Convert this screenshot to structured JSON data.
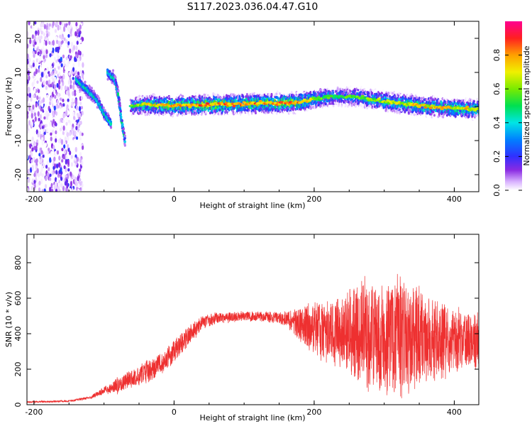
{
  "title": "S117.2023.036.04.47.G10",
  "colors": {
    "snr_line": "#ee3030"
  },
  "chart_data": [
    {
      "type": "heatmap",
      "xlabel": "Height of straight line (km)",
      "ylabel": "Frequency (Hz)",
      "xlim": [
        -210,
        435
      ],
      "ylim": [
        -25,
        25
      ],
      "xticks": [
        -200,
        0,
        200,
        400
      ],
      "yticks": [
        -20,
        -10,
        0,
        10,
        20
      ],
      "colorbar": {
        "label": "Normalized spectral amplitude",
        "range": [
          0,
          1
        ],
        "ticks": [
          "0.0",
          "0.2",
          "0.4",
          "0.6",
          "0.8"
        ],
        "colormap": "rainbow-white-purple-blue-cyan-green-yellow-red-magenta"
      },
      "ridge": {
        "x": [
          -60,
          -40,
          0,
          50,
          100,
          150,
          180,
          200,
          230,
          260,
          300,
          350,
          400,
          435
        ],
        "y": [
          0,
          0.5,
          0.3,
          0.5,
          0.8,
          1.0,
          1.2,
          2.2,
          3.0,
          2.8,
          1.5,
          0.2,
          -0.5,
          -0.8
        ],
        "amplitude": [
          0.6,
          0.75,
          0.85,
          0.9,
          0.85,
          0.9,
          0.9,
          0.7,
          0.55,
          0.6,
          0.7,
          0.8,
          0.8,
          0.75
        ]
      },
      "branches": [
        {
          "x": [
            -140,
            -125,
            -110,
            -100,
            -90
          ],
          "y": [
            8,
            5,
            2,
            -2,
            -5
          ]
        },
        {
          "x": [
            -95,
            -85,
            -80,
            -75,
            -70
          ],
          "y": [
            10,
            8,
            4,
            -4,
            -10
          ]
        }
      ],
      "noise_region": {
        "x": [
          -210,
          -130
        ],
        "y": [
          -25,
          25
        ]
      }
    },
    {
      "type": "line",
      "xlabel": "Height of straight line (km)",
      "ylabel": "SNR (10 * v/v)",
      "xlim": [
        -210,
        435
      ],
      "ylim": [
        0,
        960
      ],
      "xticks": [
        -200,
        0,
        200,
        400
      ],
      "yticks": [
        0,
        200,
        400,
        600,
        800
      ],
      "envelope": {
        "x": [
          -210,
          -150,
          -120,
          -100,
          -80,
          -60,
          -40,
          -20,
          0,
          20,
          40,
          60,
          100,
          150,
          170,
          190,
          210,
          250,
          270,
          300,
          320,
          350,
          380,
          410,
          435
        ],
        "mean": [
          15,
          20,
          40,
          80,
          110,
          150,
          180,
          230,
          300,
          390,
          460,
          490,
          500,
          490,
          470,
          440,
          420,
          400,
          390,
          380,
          380,
          370,
          360,
          360,
          360
        ],
        "amp": [
          5,
          5,
          8,
          20,
          40,
          50,
          60,
          60,
          60,
          50,
          40,
          30,
          25,
          30,
          60,
          120,
          150,
          220,
          280,
          300,
          320,
          260,
          200,
          150,
          130
        ]
      }
    }
  ]
}
